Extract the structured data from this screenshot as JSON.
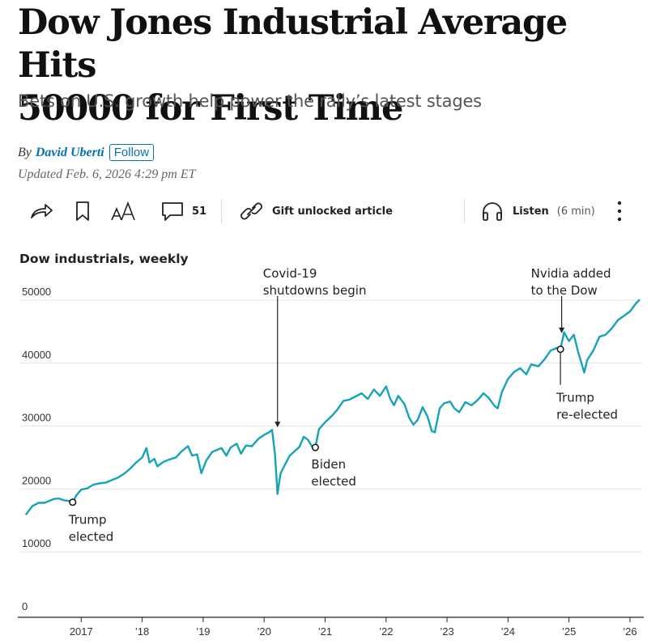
{
  "article": {
    "headline_line1": "Dow Jones Industrial Average Hits",
    "headline_line2": "50000 for First Time",
    "dek": "Bets on U.S. growth help power the rally’s latest stages",
    "byline_prefix": "By",
    "author": "David Uberti",
    "follow_label": "Follow",
    "updated": "Updated Feb. 6, 2026 4:29 pm ET"
  },
  "toolbar": {
    "comment_count": "51",
    "gift_label": "Gift unlocked article",
    "listen_label": "Listen",
    "listen_duration": "(6 min)"
  },
  "chart_data": {
    "type": "line",
    "title": "Dow industrials, weekly",
    "xlabel": "",
    "ylabel": "",
    "ylim": [
      0,
      52000
    ],
    "y_ticks": [
      {
        "value": 50000,
        "label": "50000"
      },
      {
        "value": 40000,
        "label": "40000"
      },
      {
        "value": 30000,
        "label": "30000"
      },
      {
        "value": 20000,
        "label": "20000"
      },
      {
        "value": 10000,
        "label": "10000"
      },
      {
        "value": 0,
        "label": "0"
      }
    ],
    "x_ticks": [
      {
        "value": 2017,
        "label": "2017"
      },
      {
        "value": 2018,
        "label": "’18"
      },
      {
        "value": 2019,
        "label": "’19"
      },
      {
        "value": 2020,
        "label": "’20"
      },
      {
        "value": 2021,
        "label": "’21"
      },
      {
        "value": 2022,
        "label": "’22"
      },
      {
        "value": 2023,
        "label": "’23"
      },
      {
        "value": 2024,
        "label": "’24"
      },
      {
        "value": 2025,
        "label": "’25"
      },
      {
        "value": 2026,
        "label": "’26"
      }
    ],
    "xlim": [
      2016.0,
      2026.2
    ],
    "color": "#14a3b8",
    "series": [
      {
        "name": "Dow industrials",
        "points": [
          [
            2016.09,
            15900
          ],
          [
            2016.2,
            17300
          ],
          [
            2016.3,
            17800
          ],
          [
            2016.4,
            17800
          ],
          [
            2016.5,
            18200
          ],
          [
            2016.55,
            18400
          ],
          [
            2016.63,
            18500
          ],
          [
            2016.72,
            18200
          ],
          [
            2016.8,
            18100
          ],
          [
            2016.86,
            17900
          ],
          [
            2016.92,
            19000
          ],
          [
            2017.0,
            19900
          ],
          [
            2017.1,
            20100
          ],
          [
            2017.2,
            20700
          ],
          [
            2017.3,
            20900
          ],
          [
            2017.4,
            21000
          ],
          [
            2017.5,
            21400
          ],
          [
            2017.6,
            21800
          ],
          [
            2017.7,
            22400
          ],
          [
            2017.8,
            23200
          ],
          [
            2017.9,
            24200
          ],
          [
            2018.0,
            25000
          ],
          [
            2018.07,
            26500
          ],
          [
            2018.12,
            24200
          ],
          [
            2018.2,
            24800
          ],
          [
            2018.25,
            23600
          ],
          [
            2018.35,
            24300
          ],
          [
            2018.45,
            24700
          ],
          [
            2018.55,
            25000
          ],
          [
            2018.65,
            26000
          ],
          [
            2018.75,
            26800
          ],
          [
            2018.82,
            25300
          ],
          [
            2018.9,
            25500
          ],
          [
            2018.97,
            22500
          ],
          [
            2019.05,
            24500
          ],
          [
            2019.15,
            25900
          ],
          [
            2019.3,
            26500
          ],
          [
            2019.38,
            25300
          ],
          [
            2019.45,
            26600
          ],
          [
            2019.55,
            27200
          ],
          [
            2019.62,
            25600
          ],
          [
            2019.7,
            26900
          ],
          [
            2019.8,
            26800
          ],
          [
            2019.9,
            27900
          ],
          [
            2020.0,
            28600
          ],
          [
            2020.08,
            29000
          ],
          [
            2020.13,
            29400
          ],
          [
            2020.18,
            25400
          ],
          [
            2020.22,
            19200
          ],
          [
            2020.27,
            22500
          ],
          [
            2020.35,
            24000
          ],
          [
            2020.42,
            25300
          ],
          [
            2020.5,
            26000
          ],
          [
            2020.58,
            26700
          ],
          [
            2020.65,
            28300
          ],
          [
            2020.72,
            27800
          ],
          [
            2020.8,
            26500
          ],
          [
            2020.84,
            26600
          ],
          [
            2020.9,
            29500
          ],
          [
            2021.0,
            30600
          ],
          [
            2021.1,
            31500
          ],
          [
            2021.2,
            32600
          ],
          [
            2021.3,
            34000
          ],
          [
            2021.4,
            34200
          ],
          [
            2021.5,
            34700
          ],
          [
            2021.6,
            35200
          ],
          [
            2021.7,
            34300
          ],
          [
            2021.8,
            35800
          ],
          [
            2021.9,
            34800
          ],
          [
            2022.0,
            36300
          ],
          [
            2022.07,
            34300
          ],
          [
            2022.13,
            33300
          ],
          [
            2022.2,
            34800
          ],
          [
            2022.3,
            33500
          ],
          [
            2022.38,
            31300
          ],
          [
            2022.45,
            30200
          ],
          [
            2022.52,
            31000
          ],
          [
            2022.6,
            33000
          ],
          [
            2022.68,
            31500
          ],
          [
            2022.75,
            29200
          ],
          [
            2022.8,
            29000
          ],
          [
            2022.88,
            32800
          ],
          [
            2022.95,
            33600
          ],
          [
            2023.05,
            33900
          ],
          [
            2023.12,
            32800
          ],
          [
            2023.2,
            32200
          ],
          [
            2023.3,
            33800
          ],
          [
            2023.4,
            33300
          ],
          [
            2023.5,
            34100
          ],
          [
            2023.6,
            35200
          ],
          [
            2023.68,
            34500
          ],
          [
            2023.78,
            33200
          ],
          [
            2023.83,
            32800
          ],
          [
            2023.9,
            35400
          ],
          [
            2024.0,
            37500
          ],
          [
            2024.1,
            38600
          ],
          [
            2024.2,
            39200
          ],
          [
            2024.3,
            38200
          ],
          [
            2024.38,
            39800
          ],
          [
            2024.5,
            39500
          ],
          [
            2024.6,
            40600
          ],
          [
            2024.7,
            42000
          ],
          [
            2024.8,
            42400
          ],
          [
            2024.86,
            42200
          ],
          [
            2024.92,
            44900
          ],
          [
            2025.0,
            43500
          ],
          [
            2025.08,
            44500
          ],
          [
            2025.15,
            41800
          ],
          [
            2025.25,
            38500
          ],
          [
            2025.3,
            40500
          ],
          [
            2025.4,
            42000
          ],
          [
            2025.5,
            44200
          ],
          [
            2025.6,
            44500
          ],
          [
            2025.7,
            45500
          ],
          [
            2025.8,
            46800
          ],
          [
            2025.9,
            47500
          ],
          [
            2026.0,
            48200
          ],
          [
            2026.1,
            49500
          ],
          [
            2026.16,
            50100
          ]
        ]
      }
    ],
    "annotations": [
      {
        "id": "trump-elected",
        "x": 2016.86,
        "y": 17900,
        "lines": [
          "Trump",
          "elected"
        ],
        "kind": "marker"
      },
      {
        "id": "covid",
        "x": 2020.22,
        "y": 29400,
        "lines": [
          "Covid-19",
          "shutdowns begin"
        ],
        "kind": "arrow"
      },
      {
        "id": "biden-elected",
        "x": 2020.84,
        "y": 26600,
        "lines": [
          "Biden",
          "elected"
        ],
        "kind": "marker"
      },
      {
        "id": "nvidia",
        "x": 2024.88,
        "y": 45000,
        "lines": [
          "Nvidia added",
          "to the Dow"
        ],
        "kind": "arrow"
      },
      {
        "id": "trump-reelected",
        "x": 2024.86,
        "y": 42200,
        "lines": [
          "Trump",
          "re-elected"
        ],
        "kind": "marker-line"
      }
    ]
  }
}
